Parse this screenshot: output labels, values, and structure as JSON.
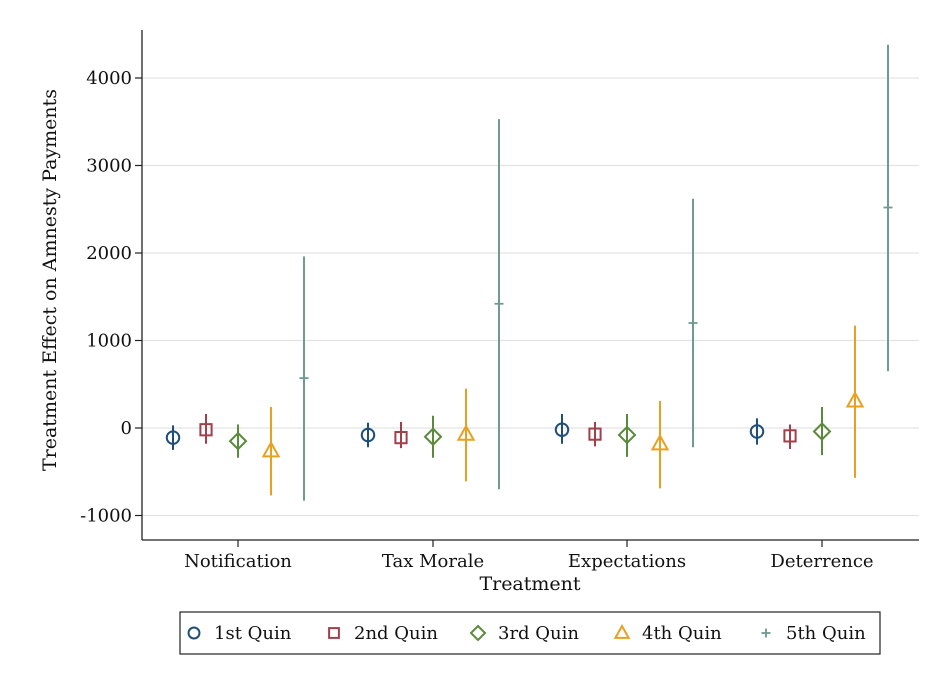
{
  "chart_data": {
    "type": "scatter",
    "subtype": "point-estimates-with-confidence-intervals",
    "xlabel": "Treatment",
    "ylabel": "Treatment Effect on Amnesty Payments",
    "categories": [
      "Notification",
      "Tax Morale",
      "Expectations",
      "Deterrence"
    ],
    "ylim": [
      -1000,
      4500
    ],
    "yticks": [
      -1000,
      0,
      1000,
      2000,
      3000,
      4000
    ],
    "ytick_labels": [
      "-1000",
      "0",
      "1000",
      "2000",
      "3000",
      "4000"
    ],
    "grid": "horizontal",
    "legend_position": "bottom",
    "series": [
      {
        "name": "1st Quin",
        "marker": "circle",
        "color": "#1f4e79",
        "values": [
          -110,
          -80,
          -20,
          -40
        ],
        "ci_low": [
          -250,
          -220,
          -180,
          -190
        ],
        "ci_high": [
          30,
          60,
          160,
          110
        ]
      },
      {
        "name": "2nd Quin",
        "marker": "square",
        "color": "#a0404a",
        "values": [
          -20,
          -110,
          -70,
          -90
        ],
        "ci_low": [
          -180,
          -230,
          -210,
          -240
        ],
        "ci_high": [
          160,
          70,
          70,
          40
        ]
      },
      {
        "name": "3rd Quin",
        "marker": "diamond",
        "color": "#5a8a3c",
        "values": [
          -150,
          -100,
          -80,
          -40
        ],
        "ci_low": [
          -340,
          -340,
          -330,
          -310
        ],
        "ci_high": [
          40,
          140,
          160,
          240
        ]
      },
      {
        "name": "4th Quin",
        "marker": "triangle",
        "color": "#e8a020",
        "values": [
          -260,
          -70,
          -180,
          310
        ],
        "ci_low": [
          -770,
          -610,
          -690,
          -570
        ],
        "ci_high": [
          240,
          450,
          310,
          1170
        ]
      },
      {
        "name": "5th Quin",
        "marker": "plus",
        "color": "#6f9a91",
        "values": [
          570,
          1420,
          1200,
          2520
        ],
        "ci_low": [
          -830,
          -700,
          -220,
          650
        ],
        "ci_high": [
          1960,
          3530,
          2620,
          4380
        ]
      }
    ]
  }
}
